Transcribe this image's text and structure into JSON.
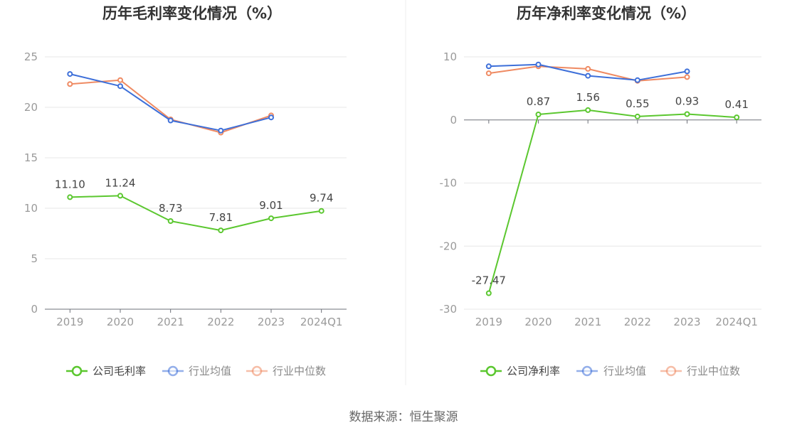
{
  "chart_data": [
    {
      "type": "line",
      "title": "历年毛利率变化情况（%）",
      "categories": [
        "2019",
        "2020",
        "2021",
        "2022",
        "2023",
        "2024Q1"
      ],
      "ylim": [
        0,
        25
      ],
      "yticks": [
        0,
        5,
        10,
        15,
        20,
        25
      ],
      "legend": "bottom",
      "series": [
        {
          "name": "公司毛利率",
          "color": "#5bc72f",
          "values": [
            11.1,
            11.24,
            8.73,
            7.81,
            9.01,
            9.74
          ],
          "labels": [
            "11.10",
            "11.24",
            "8.73",
            "7.81",
            "9.01",
            "9.74"
          ]
        },
        {
          "name": "行业均值",
          "color": "#3d6fd9",
          "values": [
            23.3,
            22.1,
            18.7,
            17.7,
            19.0,
            null
          ]
        },
        {
          "name": "行业中位数",
          "color": "#ef8a62",
          "values": [
            22.3,
            22.7,
            18.8,
            17.5,
            19.2,
            null
          ]
        }
      ]
    },
    {
      "type": "line",
      "title": "历年净利率变化情况（%）",
      "categories": [
        "2019",
        "2020",
        "2021",
        "2022",
        "2023",
        "2024Q1"
      ],
      "ylim": [
        -30,
        10
      ],
      "yticks": [
        -30,
        -20,
        -10,
        0,
        10
      ],
      "legend": "bottom",
      "series": [
        {
          "name": "公司净利率",
          "color": "#5bc72f",
          "values": [
            -27.47,
            0.87,
            1.56,
            0.55,
            0.93,
            0.41
          ],
          "labels": [
            "-27.47",
            "0.87",
            "1.56",
            "0.55",
            "0.93",
            "0.41"
          ]
        },
        {
          "name": "行业均值",
          "color": "#3d6fd9",
          "values": [
            8.5,
            8.8,
            7.0,
            6.3,
            7.7,
            null
          ]
        },
        {
          "name": "行业中位数",
          "color": "#ef8a62",
          "values": [
            7.4,
            8.5,
            8.1,
            6.2,
            6.8,
            null
          ]
        }
      ]
    }
  ],
  "footer": {
    "source": "数据来源：恒生聚源"
  }
}
